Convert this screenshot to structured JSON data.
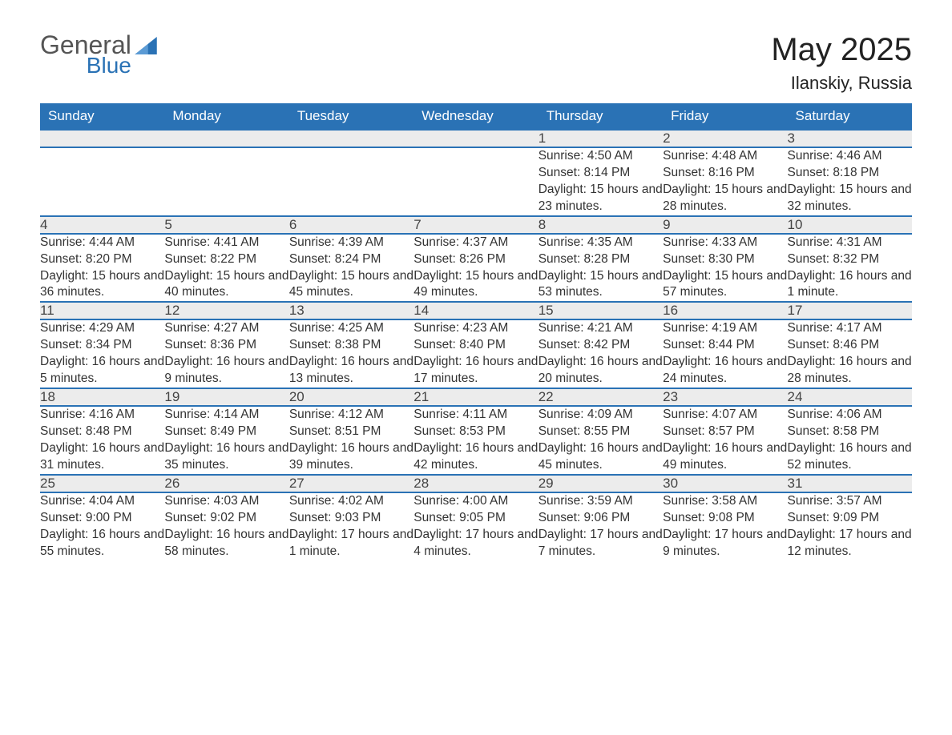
{
  "logo": {
    "text1": "General",
    "text2": "Blue"
  },
  "title": "May 2025",
  "subtitle": "Ilanskiy, Russia",
  "header_bg": "#2a72b5",
  "header_fg": "#ffffff",
  "daynum_bg": "#ececec",
  "row_sep_color": "#2a72b5",
  "body_text_color": "#333333",
  "days_of_week": [
    "Sunday",
    "Monday",
    "Tuesday",
    "Wednesday",
    "Thursday",
    "Friday",
    "Saturday"
  ],
  "weeks": [
    [
      null,
      null,
      null,
      null,
      {
        "n": "1",
        "sunrise": "4:50 AM",
        "sunset": "8:14 PM",
        "daylight": "15 hours and 23 minutes."
      },
      {
        "n": "2",
        "sunrise": "4:48 AM",
        "sunset": "8:16 PM",
        "daylight": "15 hours and 28 minutes."
      },
      {
        "n": "3",
        "sunrise": "4:46 AM",
        "sunset": "8:18 PM",
        "daylight": "15 hours and 32 minutes."
      }
    ],
    [
      {
        "n": "4",
        "sunrise": "4:44 AM",
        "sunset": "8:20 PM",
        "daylight": "15 hours and 36 minutes."
      },
      {
        "n": "5",
        "sunrise": "4:41 AM",
        "sunset": "8:22 PM",
        "daylight": "15 hours and 40 minutes."
      },
      {
        "n": "6",
        "sunrise": "4:39 AM",
        "sunset": "8:24 PM",
        "daylight": "15 hours and 45 minutes."
      },
      {
        "n": "7",
        "sunrise": "4:37 AM",
        "sunset": "8:26 PM",
        "daylight": "15 hours and 49 minutes."
      },
      {
        "n": "8",
        "sunrise": "4:35 AM",
        "sunset": "8:28 PM",
        "daylight": "15 hours and 53 minutes."
      },
      {
        "n": "9",
        "sunrise": "4:33 AM",
        "sunset": "8:30 PM",
        "daylight": "15 hours and 57 minutes."
      },
      {
        "n": "10",
        "sunrise": "4:31 AM",
        "sunset": "8:32 PM",
        "daylight": "16 hours and 1 minute."
      }
    ],
    [
      {
        "n": "11",
        "sunrise": "4:29 AM",
        "sunset": "8:34 PM",
        "daylight": "16 hours and 5 minutes."
      },
      {
        "n": "12",
        "sunrise": "4:27 AM",
        "sunset": "8:36 PM",
        "daylight": "16 hours and 9 minutes."
      },
      {
        "n": "13",
        "sunrise": "4:25 AM",
        "sunset": "8:38 PM",
        "daylight": "16 hours and 13 minutes."
      },
      {
        "n": "14",
        "sunrise": "4:23 AM",
        "sunset": "8:40 PM",
        "daylight": "16 hours and 17 minutes."
      },
      {
        "n": "15",
        "sunrise": "4:21 AM",
        "sunset": "8:42 PM",
        "daylight": "16 hours and 20 minutes."
      },
      {
        "n": "16",
        "sunrise": "4:19 AM",
        "sunset": "8:44 PM",
        "daylight": "16 hours and 24 minutes."
      },
      {
        "n": "17",
        "sunrise": "4:17 AM",
        "sunset": "8:46 PM",
        "daylight": "16 hours and 28 minutes."
      }
    ],
    [
      {
        "n": "18",
        "sunrise": "4:16 AM",
        "sunset": "8:48 PM",
        "daylight": "16 hours and 31 minutes."
      },
      {
        "n": "19",
        "sunrise": "4:14 AM",
        "sunset": "8:49 PM",
        "daylight": "16 hours and 35 minutes."
      },
      {
        "n": "20",
        "sunrise": "4:12 AM",
        "sunset": "8:51 PM",
        "daylight": "16 hours and 39 minutes."
      },
      {
        "n": "21",
        "sunrise": "4:11 AM",
        "sunset": "8:53 PM",
        "daylight": "16 hours and 42 minutes."
      },
      {
        "n": "22",
        "sunrise": "4:09 AM",
        "sunset": "8:55 PM",
        "daylight": "16 hours and 45 minutes."
      },
      {
        "n": "23",
        "sunrise": "4:07 AM",
        "sunset": "8:57 PM",
        "daylight": "16 hours and 49 minutes."
      },
      {
        "n": "24",
        "sunrise": "4:06 AM",
        "sunset": "8:58 PM",
        "daylight": "16 hours and 52 minutes."
      }
    ],
    [
      {
        "n": "25",
        "sunrise": "4:04 AM",
        "sunset": "9:00 PM",
        "daylight": "16 hours and 55 minutes."
      },
      {
        "n": "26",
        "sunrise": "4:03 AM",
        "sunset": "9:02 PM",
        "daylight": "16 hours and 58 minutes."
      },
      {
        "n": "27",
        "sunrise": "4:02 AM",
        "sunset": "9:03 PM",
        "daylight": "17 hours and 1 minute."
      },
      {
        "n": "28",
        "sunrise": "4:00 AM",
        "sunset": "9:05 PM",
        "daylight": "17 hours and 4 minutes."
      },
      {
        "n": "29",
        "sunrise": "3:59 AM",
        "sunset": "9:06 PM",
        "daylight": "17 hours and 7 minutes."
      },
      {
        "n": "30",
        "sunrise": "3:58 AM",
        "sunset": "9:08 PM",
        "daylight": "17 hours and 9 minutes."
      },
      {
        "n": "31",
        "sunrise": "3:57 AM",
        "sunset": "9:09 PM",
        "daylight": "17 hours and 12 minutes."
      }
    ]
  ],
  "labels": {
    "sunrise": "Sunrise: ",
    "sunset": "Sunset: ",
    "daylight": "Daylight: "
  }
}
